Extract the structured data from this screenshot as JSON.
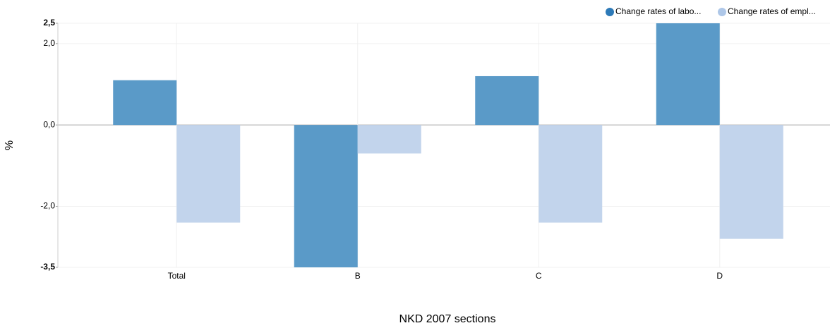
{
  "chart_data": {
    "type": "bar",
    "x_label": "NKD 2007 sections",
    "y_label": "%",
    "categories": [
      "Total",
      "B",
      "C",
      "D"
    ],
    "series": [
      {
        "name": "Change rates of labo...",
        "color": "#5a9ac8",
        "legend_color": "#2d7ab8",
        "values": [
          1.1,
          -3.5,
          1.2,
          2.5
        ]
      },
      {
        "name": "Change rates of empl...",
        "color": "#c2d4ec",
        "legend_color": "#aec7e8",
        "values": [
          -2.4,
          -0.7,
          -2.4,
          -2.8
        ]
      }
    ],
    "ylim": [
      -3.5,
      2.5
    ],
    "yticks": [
      {
        "value": -3.5,
        "label": "-3,5"
      },
      {
        "value": -2,
        "label": "-2,0"
      },
      {
        "value": 0,
        "label": "0,0"
      },
      {
        "value": 2,
        "label": "2,0"
      },
      {
        "value": 2.5,
        "label": "2,5"
      }
    ],
    "grid": true
  }
}
